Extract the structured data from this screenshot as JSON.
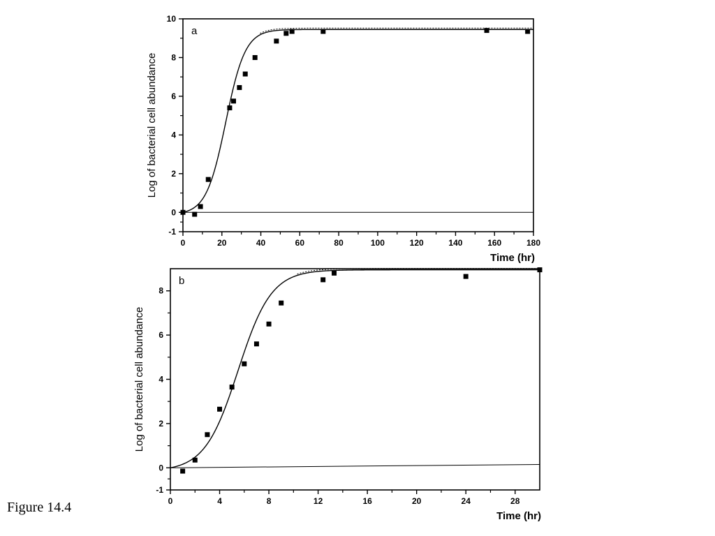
{
  "caption": "Figure 14.4",
  "chart_data": [
    {
      "type": "scatter",
      "panel_label": "a",
      "xlabel": "Time (hr)",
      "ylabel": "Log of bacterial cell abundance",
      "xlim": [
        0,
        180
      ],
      "ylim": [
        -1,
        10
      ],
      "xticks": [
        0,
        20,
        40,
        60,
        80,
        100,
        120,
        140,
        160,
        180
      ],
      "yticks": [
        -1,
        0,
        2,
        4,
        6,
        8,
        10
      ],
      "grid": false,
      "series": [
        {
          "points": [
            [
              0,
              0
            ],
            [
              6,
              -0.1
            ],
            [
              9,
              0.3
            ],
            [
              13,
              1.7
            ],
            [
              24,
              5.4
            ],
            [
              26,
              5.75
            ],
            [
              29,
              6.45
            ],
            [
              32,
              7.15
            ],
            [
              37,
              8.0
            ],
            [
              48,
              8.85
            ],
            [
              53,
              9.25
            ],
            [
              56,
              9.35
            ],
            [
              72,
              9.35
            ],
            [
              156,
              9.4
            ],
            [
              177,
              9.35
            ]
          ]
        }
      ],
      "fit_curve": {
        "type": "logistic",
        "plateau": 9.45,
        "midpoint": 22,
        "scale": 5,
        "start": 0
      },
      "baseline": 0
    },
    {
      "type": "scatter",
      "panel_label": "b",
      "xlabel": "Time (hr)",
      "ylabel": "Log of bacterial cell abundance",
      "xlim": [
        0,
        30
      ],
      "ylim": [
        -1,
        9
      ],
      "xticks": [
        0,
        4,
        8,
        12,
        16,
        20,
        24,
        28
      ],
      "yticks": [
        -1,
        0,
        2,
        4,
        6,
        8
      ],
      "grid": false,
      "series": [
        {
          "points": [
            [
              1,
              -0.15
            ],
            [
              2,
              0.35
            ],
            [
              3,
              1.5
            ],
            [
              4,
              2.65
            ],
            [
              5,
              3.65
            ],
            [
              6,
              4.7
            ],
            [
              7,
              5.6
            ],
            [
              8,
              6.5
            ],
            [
              9,
              7.45
            ],
            [
              12.4,
              8.5
            ],
            [
              13.3,
              8.8
            ],
            [
              24,
              8.65
            ],
            [
              30,
              8.95
            ]
          ]
        }
      ],
      "fit_curve": {
        "type": "logistic",
        "plateau": 8.95,
        "midpoint": 5.5,
        "scale": 1.35,
        "start": 0
      },
      "baseline": 0,
      "baseline_end": 0.15
    }
  ]
}
